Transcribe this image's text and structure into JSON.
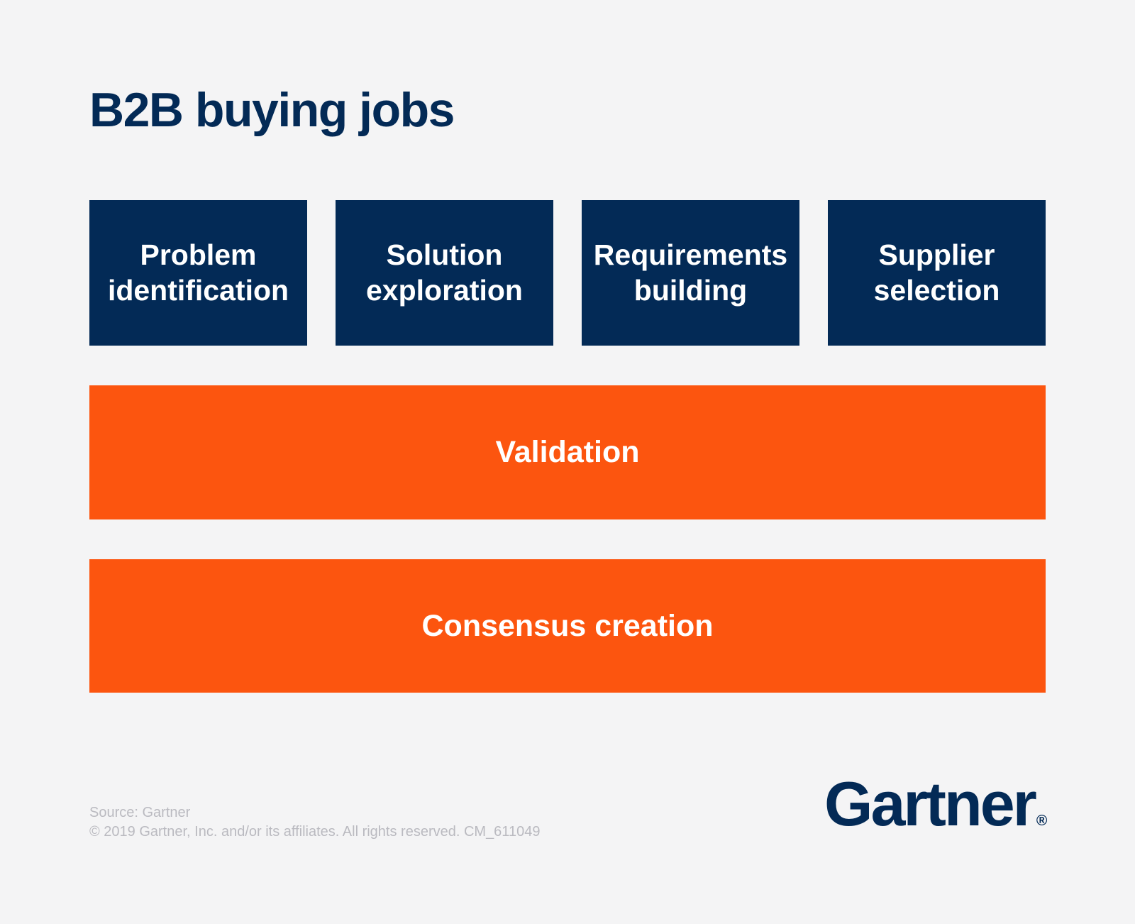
{
  "title": "B2B buying jobs",
  "stages": [
    {
      "label": "Problem identification"
    },
    {
      "label": "Solution exploration"
    },
    {
      "label": "Requirements building"
    },
    {
      "label": "Supplier selection"
    }
  ],
  "bars": [
    {
      "label": "Validation"
    },
    {
      "label": "Consensus creation"
    }
  ],
  "footer": {
    "source": "Source: Gartner",
    "copyright": "© 2019 Gartner, Inc. and/or its affiliates. All rights reserved. CM_611049"
  },
  "logo": {
    "text": "Gartner",
    "registered": "®"
  },
  "colors": {
    "navy": "#032a56",
    "orange": "#fc550f",
    "background": "#f4f4f5",
    "box_text": "#ffffff",
    "footer_text": "#babac0"
  }
}
